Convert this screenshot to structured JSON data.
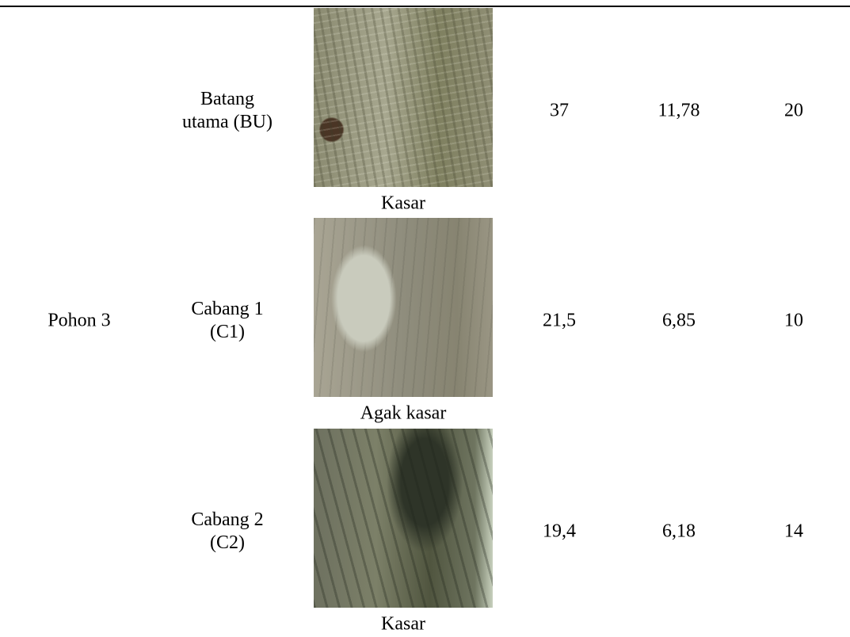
{
  "table": {
    "group": "Pohon 3",
    "rows": [
      {
        "part": "Batang\nutama (BU)",
        "texture": "Kasar",
        "cells": [
          "37",
          "11,78",
          "20"
        ]
      },
      {
        "part": "Cabang 1\n(C1)",
        "texture": "Agak kasar",
        "cells": [
          "21,5",
          "6,85",
          "10"
        ]
      },
      {
        "part": "Cabang 2\n(C2)",
        "texture": "Kasar",
        "cells": [
          "19,4",
          "6,18",
          "14"
        ]
      }
    ]
  }
}
